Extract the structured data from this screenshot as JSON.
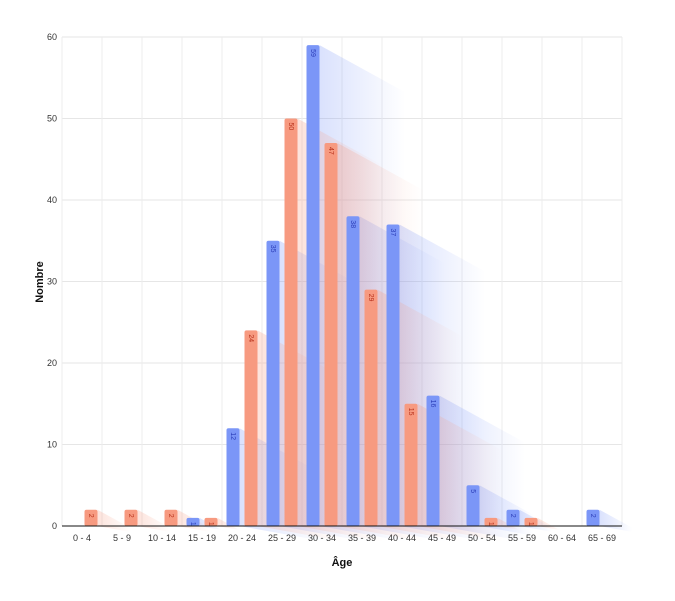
{
  "chart_data": {
    "type": "bar",
    "xlabel": "Âge",
    "ylabel": "Nombre",
    "ylim": [
      0,
      60
    ],
    "yticks": [
      0,
      10,
      20,
      30,
      40,
      50,
      60
    ],
    "grid": true,
    "categories": [
      "0 - 4",
      "5 - 9",
      "10 - 14",
      "15 - 19",
      "20 - 24",
      "25 - 29",
      "30 - 34",
      "35 - 39",
      "40 - 44",
      "45 - 49",
      "50 - 54",
      "55 - 59",
      "60 - 64",
      "65 - 69"
    ],
    "series": [
      {
        "values": [
          null,
          null,
          null,
          1,
          12,
          35,
          59,
          38,
          37,
          16,
          5,
          2,
          null,
          2
        ],
        "color": "#7b96f7",
        "label_color": "#2b3db8"
      },
      {
        "values": [
          2,
          2,
          2,
          1,
          24,
          50,
          47,
          29,
          15,
          null,
          1,
          1,
          null,
          null
        ],
        "color": "#f79a80",
        "label_color": "#b8321c"
      }
    ]
  }
}
